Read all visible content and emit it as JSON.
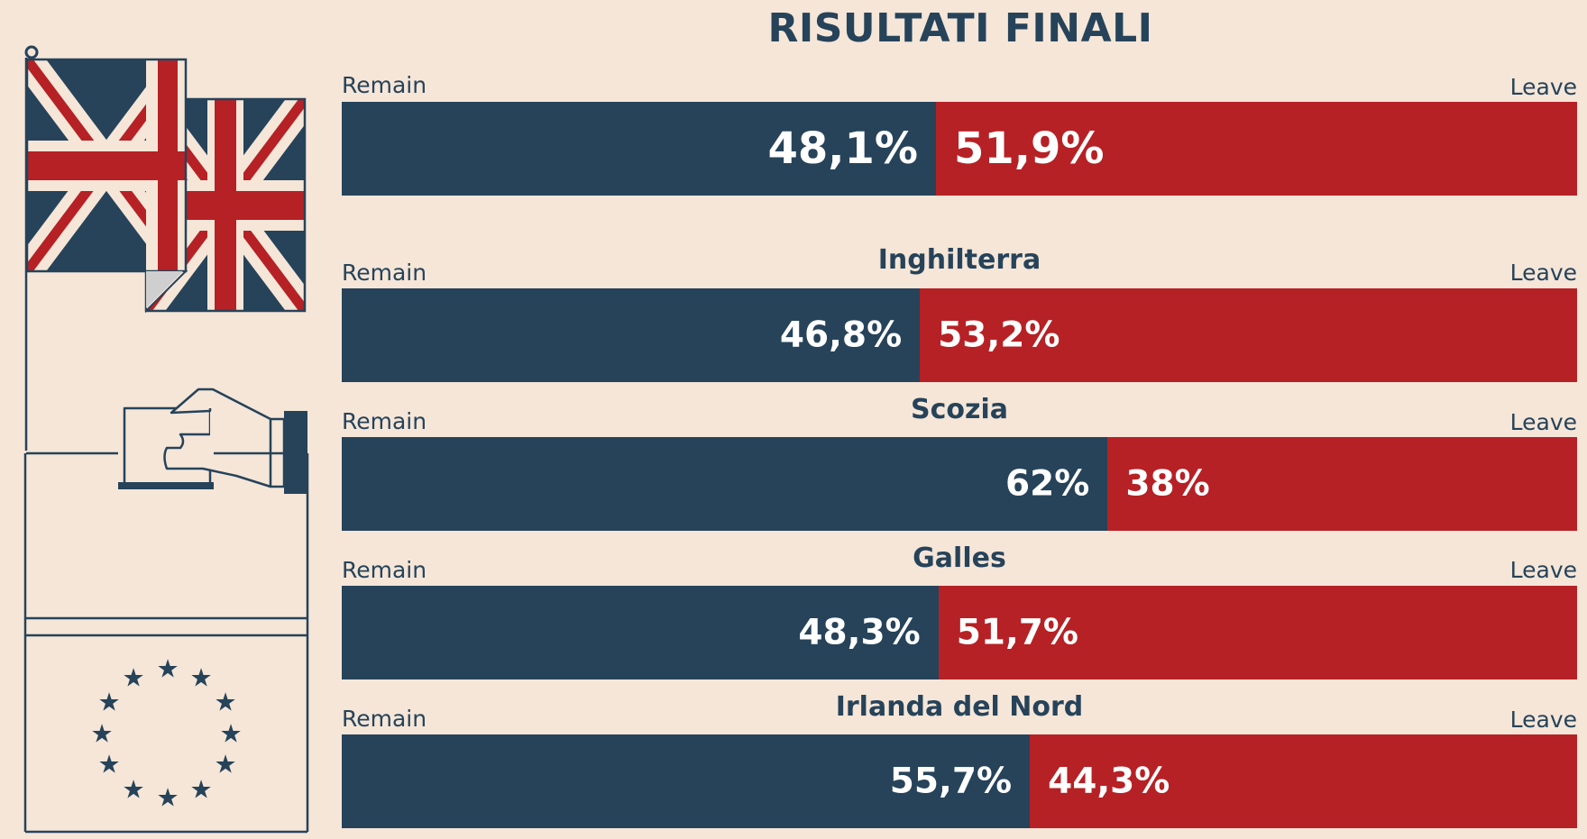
{
  "title": "RISULTATI FINALI",
  "colors": {
    "remain": "#26435a",
    "leave": "#b62125",
    "background": "#f5e6d8"
  },
  "icons": [
    "union-jack-flag-icon",
    "hand-voting-icon",
    "ballot-box-icon",
    "eu-stars-icon"
  ],
  "chart_data": [
    {
      "type": "bar",
      "stacked": true,
      "orientation": "horizontal",
      "title": "",
      "series": [
        {
          "name": "Remain",
          "values": [
            48.1
          ]
        },
        {
          "name": "Leave",
          "values": [
            51.9
          ]
        }
      ],
      "labels": {
        "remain": "Remain",
        "leave": "Leave",
        "remain_value": "48,1%",
        "leave_value": "51,9%"
      }
    },
    {
      "type": "bar",
      "stacked": true,
      "orientation": "horizontal",
      "title": "Inghilterra",
      "series": [
        {
          "name": "Remain",
          "values": [
            46.8
          ]
        },
        {
          "name": "Leave",
          "values": [
            53.2
          ]
        }
      ],
      "labels": {
        "remain": "Remain",
        "leave": "Leave",
        "remain_value": "46,8%",
        "leave_value": "53,2%"
      }
    },
    {
      "type": "bar",
      "stacked": true,
      "orientation": "horizontal",
      "title": "Scozia",
      "series": [
        {
          "name": "Remain",
          "values": [
            62
          ]
        },
        {
          "name": "Leave",
          "values": [
            38
          ]
        }
      ],
      "labels": {
        "remain": "Remain",
        "leave": "Leave",
        "remain_value": "62%",
        "leave_value": "38%"
      }
    },
    {
      "type": "bar",
      "stacked": true,
      "orientation": "horizontal",
      "title": "Galles",
      "series": [
        {
          "name": "Remain",
          "values": [
            48.3
          ]
        },
        {
          "name": "Leave",
          "values": [
            51.7
          ]
        }
      ],
      "labels": {
        "remain": "Remain",
        "leave": "Leave",
        "remain_value": "48,3%",
        "leave_value": "51,7%"
      }
    },
    {
      "type": "bar",
      "stacked": true,
      "orientation": "horizontal",
      "title": "Irlanda del Nord",
      "series": [
        {
          "name": "Remain",
          "values": [
            55.7
          ]
        },
        {
          "name": "Leave",
          "values": [
            44.3
          ]
        }
      ],
      "labels": {
        "remain": "Remain",
        "leave": "Leave",
        "remain_value": "55,7%",
        "leave_value": "44,3%"
      }
    }
  ]
}
